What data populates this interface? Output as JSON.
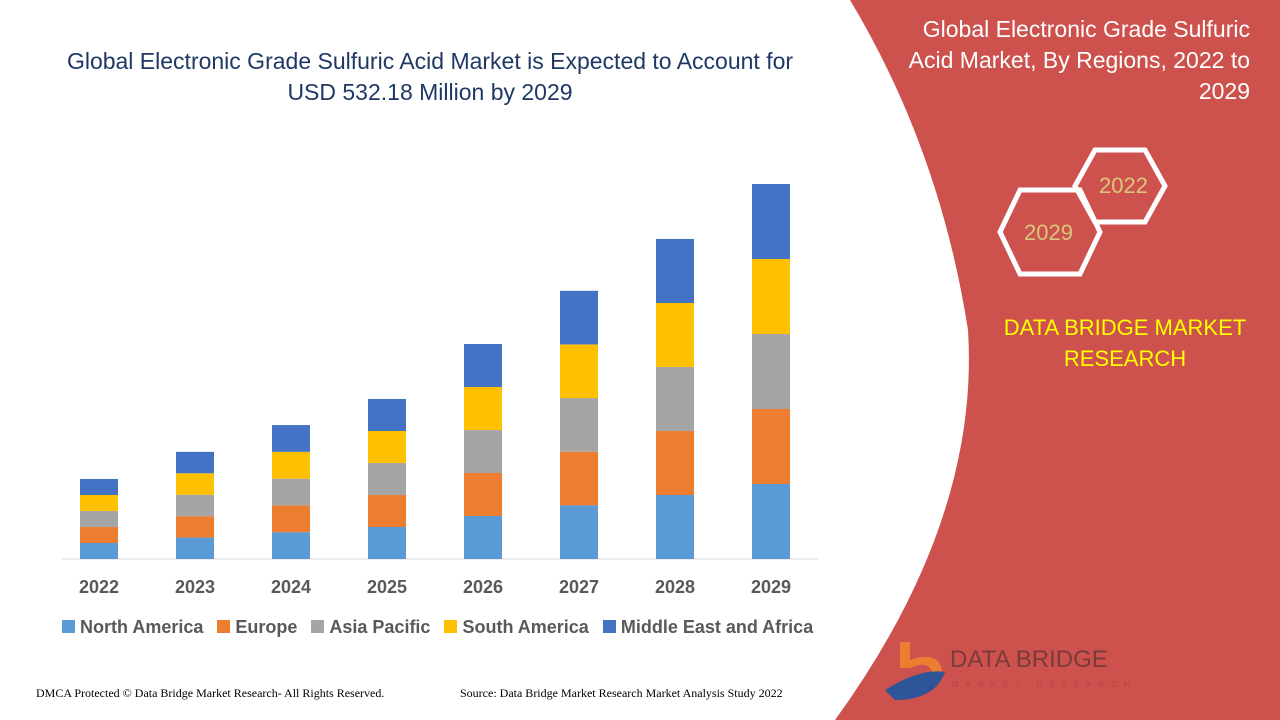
{
  "title": "Global Electronic Grade Sulfuric Acid Market is Expected to Account for USD 532.18 Million by 2029",
  "side_title": "Global Electronic Grade Sulfuric Acid Market, By Regions, 2022 to 2029",
  "hex_labels": [
    "2022",
    "2029"
  ],
  "brand": "DATA BRIDGE MARKET RESEARCH",
  "logo": {
    "name": "DATA BRIDGE",
    "sub": "MARKET RESEARCH"
  },
  "footer": {
    "left": "DMCA Protected © Data Bridge Market Research- All Rights Reserved.",
    "right": "Source: Data Bridge Market Research Market Analysis Study 2022"
  },
  "colors": {
    "panel": "#cd514d",
    "title": "#1f3864",
    "brand": "#ffff00"
  },
  "chart_data": {
    "type": "bar",
    "stacked": true,
    "categories": [
      "2022",
      "2023",
      "2024",
      "2025",
      "2026",
      "2027",
      "2028",
      "2029"
    ],
    "legend_position": "bottom",
    "grid": false,
    "series": [
      {
        "name": "North America",
        "color": "#5b9bd5",
        "values": [
          22.7,
          30.4,
          38.0,
          45.4,
          61.0,
          76.1,
          90.8,
          106.4
        ]
      },
      {
        "name": "Europe",
        "color": "#ed7d31",
        "values": [
          22.7,
          30.4,
          38.0,
          45.4,
          61.0,
          76.1,
          90.8,
          106.4
        ]
      },
      {
        "name": "Asia Pacific",
        "color": "#a5a5a5",
        "values": [
          22.7,
          30.4,
          38.0,
          45.4,
          61.0,
          76.1,
          90.8,
          106.4
        ]
      },
      {
        "name": "South America",
        "color": "#ffc000",
        "values": [
          22.7,
          30.4,
          38.0,
          45.4,
          61.0,
          76.1,
          90.8,
          106.4
        ]
      },
      {
        "name": "Middle East and Africa",
        "color": "#4472c4",
        "values": [
          22.7,
          30.4,
          38.0,
          45.4,
          61.0,
          76.1,
          90.8,
          106.4
        ]
      }
    ]
  }
}
